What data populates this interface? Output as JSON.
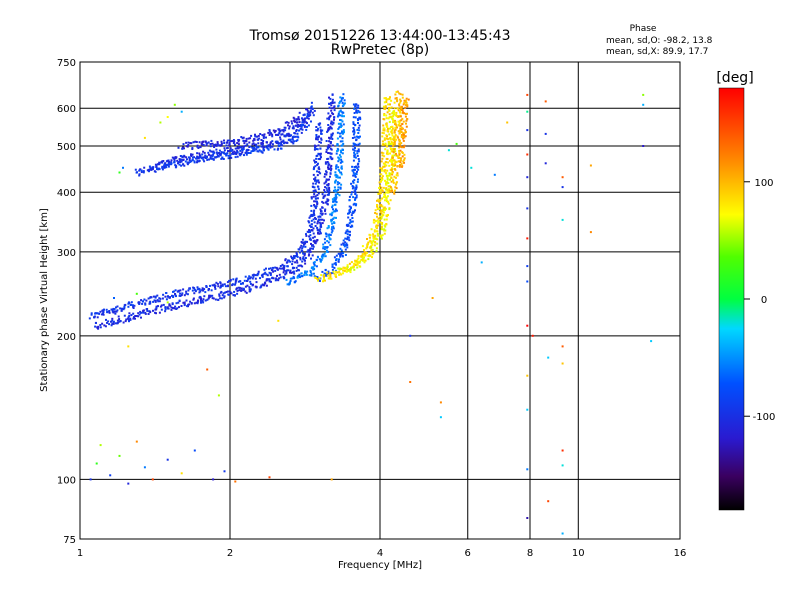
{
  "title": {
    "line1": "Tromsø 20151226 13:44:00-13:45:43",
    "line2": "RwPretec (8p)"
  },
  "phase_info": {
    "heading": "Phase",
    "line_o": "mean, sd,O: -98.2, 13.8",
    "line_x": "mean, sd,X: 89.9, 17.7"
  },
  "colorbar": {
    "unit_label": "[deg]",
    "ticks": [
      {
        "value": 100,
        "label": "100"
      },
      {
        "value": 0,
        "label": "0"
      },
      {
        "value": -100,
        "label": "-100"
      }
    ],
    "range": [
      -180,
      180
    ]
  },
  "chart_data": {
    "type": "scatter",
    "title": "Tromsø 20151226 13:44:00-13:45:43",
    "subtitle": "RwPretec (8p)",
    "xlabel": "Frequency [MHz]",
    "ylabel": "Stationary phase Virtual Height [km]",
    "xscale": "log",
    "yscale": "log",
    "xlim": [
      1,
      16
    ],
    "ylim": [
      75,
      750
    ],
    "x_ticks": [
      1,
      2,
      4,
      6,
      8,
      10,
      16
    ],
    "x_tick_labels": [
      "1",
      "2",
      "4",
      "6",
      "8",
      "10",
      "16"
    ],
    "y_ticks": [
      75,
      100,
      200,
      300,
      400,
      500,
      600,
      750
    ],
    "y_tick_labels": [
      "75",
      "100",
      "200",
      "300",
      "400",
      "500",
      "600",
      "750"
    ],
    "grid": true,
    "color_by": "phase",
    "traces": [
      {
        "x": [
          1.05,
          1.2,
          1.4,
          1.6,
          1.8,
          2.0,
          2.2,
          2.4,
          2.6,
          2.75,
          2.85,
          2.93,
          2.97,
          3.0,
          3.02
        ],
        "y": [
          220,
          228,
          238,
          246,
          252,
          258,
          264,
          272,
          282,
          296,
          318,
          350,
          400,
          470,
          560
        ],
        "phase": -98
      },
      {
        "x": [
          1.08,
          1.25,
          1.45,
          1.7,
          1.95,
          2.2,
          2.45,
          2.7,
          2.88,
          3.0,
          3.1,
          3.15,
          3.18,
          3.2
        ],
        "y": [
          210,
          218,
          228,
          236,
          244,
          252,
          262,
          276,
          296,
          330,
          380,
          450,
          540,
          640
        ],
        "phase": -105
      },
      {
        "x": [
          2.6,
          2.9,
          3.1,
          3.22,
          3.3,
          3.33,
          3.35
        ],
        "y": [
          258,
          272,
          300,
          350,
          420,
          520,
          640
        ],
        "phase": -60
      },
      {
        "x": [
          3.0,
          3.2,
          3.38,
          3.48,
          3.55,
          3.58,
          3.6
        ],
        "y": [
          265,
          275,
          300,
          340,
          400,
          480,
          620
        ],
        "phase": -80
      },
      {
        "x": [
          3.0,
          3.3,
          3.6,
          3.8,
          3.95,
          4.05,
          4.1,
          4.15
        ],
        "y": [
          262,
          270,
          285,
          310,
          350,
          410,
          500,
          640
        ],
        "phase": 90
      },
      {
        "x": [
          3.3,
          3.6,
          3.85,
          4.05,
          4.15,
          4.22,
          4.25
        ],
        "y": [
          272,
          280,
          300,
          335,
          390,
          470,
          600
        ],
        "phase": 80
      },
      {
        "x": [
          4.25,
          4.3,
          4.33,
          4.35
        ],
        "y": [
          400,
          470,
          560,
          650
        ],
        "phase": 100
      },
      {
        "x": [
          4.4,
          4.45,
          4.5
        ],
        "y": [
          450,
          530,
          640
        ],
        "phase": 110
      },
      {
        "x": [
          1.4,
          1.6,
          1.8,
          2.0,
          2.2,
          2.4,
          2.6,
          2.8,
          2.9
        ],
        "y": [
          450,
          470,
          480,
          488,
          496,
          506,
          520,
          560,
          600
        ],
        "phase": -105
      },
      {
        "x": [
          1.3,
          1.5,
          1.7,
          1.9,
          2.1,
          2.3,
          2.5,
          2.7,
          2.85,
          2.95
        ],
        "y": [
          440,
          455,
          468,
          476,
          484,
          492,
          500,
          520,
          560,
          610
        ],
        "phase": -95
      },
      {
        "x": [
          1.6,
          1.85,
          2.1,
          2.35,
          2.6,
          2.8
        ],
        "y": [
          500,
          505,
          512,
          525,
          545,
          580
        ],
        "phase": -110
      }
    ],
    "scatter_points": [
      {
        "x": 1.05,
        "y": 100,
        "phase": -100
      },
      {
        "x": 1.08,
        "y": 108,
        "phase": 20
      },
      {
        "x": 1.1,
        "y": 118,
        "phase": 60
      },
      {
        "x": 1.15,
        "y": 102,
        "phase": -90
      },
      {
        "x": 1.2,
        "y": 112,
        "phase": 40
      },
      {
        "x": 1.25,
        "y": 98,
        "phase": -110
      },
      {
        "x": 1.3,
        "y": 120,
        "phase": 120
      },
      {
        "x": 1.35,
        "y": 106,
        "phase": -60
      },
      {
        "x": 1.4,
        "y": 100,
        "phase": 150
      },
      {
        "x": 1.5,
        "y": 110,
        "phase": -100
      },
      {
        "x": 1.6,
        "y": 103,
        "phase": 90
      },
      {
        "x": 1.7,
        "y": 115,
        "phase": -80
      },
      {
        "x": 1.85,
        "y": 100,
        "phase": -120
      },
      {
        "x": 1.95,
        "y": 104,
        "phase": -95
      },
      {
        "x": 2.05,
        "y": 99,
        "phase": 130
      },
      {
        "x": 2.4,
        "y": 101,
        "phase": 150
      },
      {
        "x": 3.2,
        "y": 100,
        "phase": 110
      },
      {
        "x": 1.25,
        "y": 190,
        "phase": 90
      },
      {
        "x": 1.8,
        "y": 170,
        "phase": 140
      },
      {
        "x": 1.9,
        "y": 150,
        "phase": 60
      },
      {
        "x": 2.5,
        "y": 215,
        "phase": 90
      },
      {
        "x": 4.6,
        "y": 200,
        "phase": -100
      },
      {
        "x": 4.6,
        "y": 160,
        "phase": 130
      },
      {
        "x": 5.3,
        "y": 145,
        "phase": 120
      },
      {
        "x": 5.3,
        "y": 135,
        "phase": -30
      },
      {
        "x": 5.1,
        "y": 240,
        "phase": 110
      },
      {
        "x": 5.5,
        "y": 490,
        "phase": -20
      },
      {
        "x": 5.7,
        "y": 505,
        "phase": 30
      },
      {
        "x": 6.1,
        "y": 450,
        "phase": -20
      },
      {
        "x": 6.4,
        "y": 285,
        "phase": -40
      },
      {
        "x": 6.8,
        "y": 435,
        "phase": -60
      },
      {
        "x": 7.2,
        "y": 560,
        "phase": 100
      },
      {
        "x": 7.9,
        "y": 640,
        "phase": 150
      },
      {
        "x": 7.9,
        "y": 590,
        "phase": -10
      },
      {
        "x": 7.9,
        "y": 540,
        "phase": -100
      },
      {
        "x": 7.9,
        "y": 480,
        "phase": 160
      },
      {
        "x": 7.9,
        "y": 430,
        "phase": -110
      },
      {
        "x": 7.9,
        "y": 370,
        "phase": -100
      },
      {
        "x": 7.9,
        "y": 320,
        "phase": 170
      },
      {
        "x": 7.9,
        "y": 280,
        "phase": -90
      },
      {
        "x": 7.9,
        "y": 260,
        "phase": -80
      },
      {
        "x": 7.9,
        "y": 210,
        "phase": 180
      },
      {
        "x": 7.9,
        "y": 165,
        "phase": 100
      },
      {
        "x": 7.9,
        "y": 140,
        "phase": -30
      },
      {
        "x": 7.9,
        "y": 105,
        "phase": -60
      },
      {
        "x": 7.9,
        "y": 83,
        "phase": -130
      },
      {
        "x": 8.1,
        "y": 200,
        "phase": 170
      },
      {
        "x": 8.6,
        "y": 620,
        "phase": 140
      },
      {
        "x": 8.6,
        "y": 530,
        "phase": -100
      },
      {
        "x": 8.6,
        "y": 460,
        "phase": -110
      },
      {
        "x": 8.7,
        "y": 180,
        "phase": -30
      },
      {
        "x": 8.7,
        "y": 90,
        "phase": 150
      },
      {
        "x": 9.3,
        "y": 430,
        "phase": 140
      },
      {
        "x": 9.3,
        "y": 410,
        "phase": -100
      },
      {
        "x": 9.3,
        "y": 350,
        "phase": -20
      },
      {
        "x": 9.3,
        "y": 190,
        "phase": 140
      },
      {
        "x": 9.3,
        "y": 175,
        "phase": 100
      },
      {
        "x": 9.3,
        "y": 115,
        "phase": 160
      },
      {
        "x": 9.3,
        "y": 107,
        "phase": -20
      },
      {
        "x": 9.3,
        "y": 77,
        "phase": -40
      },
      {
        "x": 10.6,
        "y": 455,
        "phase": 110
      },
      {
        "x": 10.6,
        "y": 330,
        "phase": 120
      },
      {
        "x": 13.5,
        "y": 640,
        "phase": 50
      },
      {
        "x": 13.5,
        "y": 610,
        "phase": -40
      },
      {
        "x": 13.5,
        "y": 500,
        "phase": -120
      },
      {
        "x": 14.0,
        "y": 195,
        "phase": -30
      },
      {
        "x": 1.55,
        "y": 610,
        "phase": 50
      },
      {
        "x": 1.45,
        "y": 560,
        "phase": 60
      },
      {
        "x": 1.5,
        "y": 575,
        "phase": 80
      },
      {
        "x": 1.6,
        "y": 590,
        "phase": -40
      },
      {
        "x": 1.35,
        "y": 520,
        "phase": 90
      },
      {
        "x": 1.2,
        "y": 440,
        "phase": 20
      },
      {
        "x": 1.22,
        "y": 450,
        "phase": -60
      },
      {
        "x": 1.3,
        "y": 245,
        "phase": 30
      },
      {
        "x": 1.5,
        "y": 235,
        "phase": 60
      },
      {
        "x": 1.17,
        "y": 240,
        "phase": -70
      }
    ]
  }
}
